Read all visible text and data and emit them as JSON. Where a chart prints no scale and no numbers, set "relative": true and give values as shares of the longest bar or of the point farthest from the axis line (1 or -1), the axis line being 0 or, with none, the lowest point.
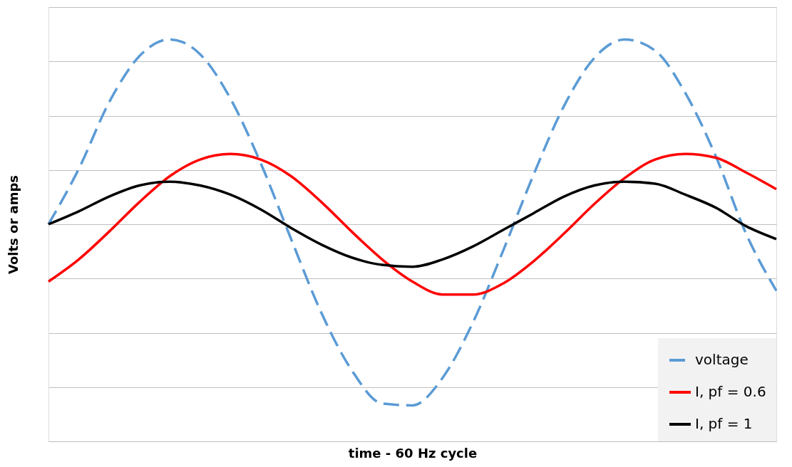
{
  "chart_data": {
    "type": "line",
    "relative": true,
    "xlabel": "time - 60 Hz cycle",
    "ylabel": "Volts or amps",
    "categories": [
      null,
      null,
      null,
      null,
      null,
      null,
      null,
      null,
      null,
      null,
      null,
      null,
      null,
      null,
      null,
      null,
      null,
      null,
      null,
      null,
      null,
      null,
      null,
      null,
      null
    ],
    "series": [
      {
        "name": "voltage",
        "color": "#5b9bd5",
        "line_style": "dashed",
        "values": [
          0,
          0.3,
          0.66,
          0.91,
          1.0,
          0.92,
          0.68,
          0.33,
          -0.08,
          -0.48,
          -0.79,
          -0.97,
          -0.98,
          -0.83,
          -0.53,
          -0.14,
          0.27,
          0.64,
          0.9,
          1.0,
          0.94,
          0.71,
          0.37,
          -0.05,
          -0.36
        ]
      },
      {
        "name": "I, pf = 0.6",
        "color": "#ff0000",
        "line_style": "solid",
        "values": [
          -0.31,
          -0.19,
          -0.04,
          0.12,
          0.26,
          0.35,
          0.38,
          0.35,
          0.26,
          0.12,
          -0.04,
          -0.19,
          -0.31,
          -0.38,
          -0.38,
          -0.32,
          -0.2,
          -0.05,
          0.11,
          0.25,
          0.35,
          0.38,
          0.36,
          0.28,
          0.19
        ]
      },
      {
        "name": "I, pf = 1",
        "color": "#000000",
        "line_style": "solid",
        "values": [
          0,
          0.07,
          0.15,
          0.21,
          0.23,
          0.21,
          0.16,
          0.08,
          -0.02,
          -0.11,
          -0.18,
          -0.22,
          -0.23,
          -0.19,
          -0.12,
          -0.03,
          0.06,
          0.15,
          0.21,
          0.23,
          0.22,
          0.16,
          0.09,
          -0.01,
          -0.08
        ]
      }
    ],
    "grid": "y",
    "legend": "bottom right",
    "marker": "none"
  }
}
